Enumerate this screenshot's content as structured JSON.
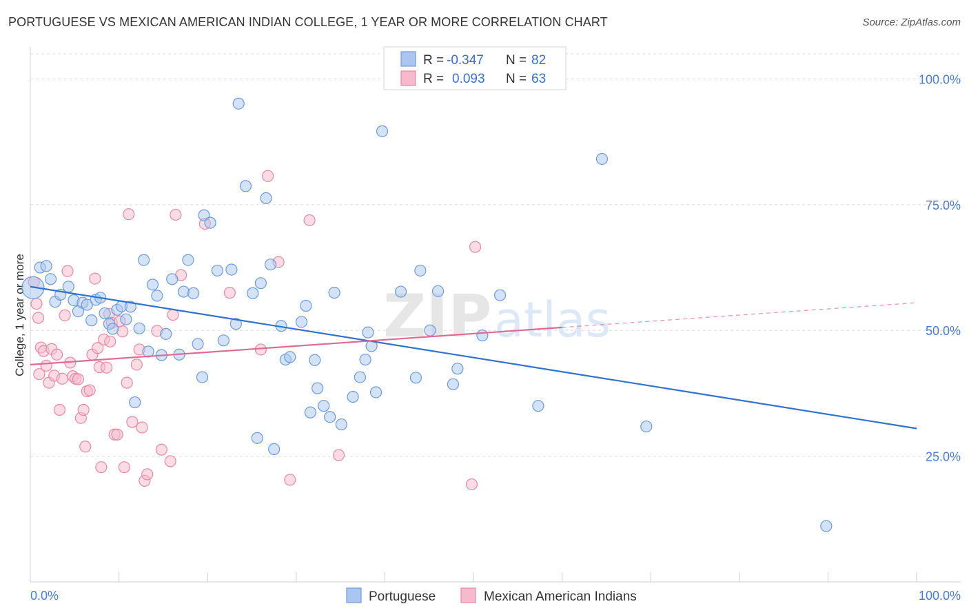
{
  "title": "PORTUGUESE VS MEXICAN AMERICAN INDIAN COLLEGE, 1 YEAR OR MORE CORRELATION CHART",
  "source": "Source: ZipAtlas.com",
  "colors": {
    "blue_fill": "#aac6f0",
    "blue_stroke": "#6d9ad9",
    "blue_line": "#2f72d0",
    "pink_fill": "#f7b9cc",
    "pink_stroke": "#e48aa6",
    "pink_line": "#e06a94",
    "grid": "#dcdcdc",
    "axis_text": "#4a7cc9"
  },
  "watermark": {
    "zip": "ZIP",
    "atlas": "atlas"
  },
  "stats": {
    "blue": {
      "r_label": "R =",
      "r": "-0.347",
      "n_label": "N =",
      "n": "82"
    },
    "pink": {
      "r_label": "R =",
      "r": "0.093",
      "n_label": "N =",
      "n": "63"
    }
  },
  "legend": {
    "blue": "Portuguese",
    "pink": "Mexican American Indians"
  },
  "chart_data": {
    "type": "scatter",
    "title": "PORTUGUESE VS MEXICAN AMERICAN INDIAN COLLEGE, 1 YEAR OR MORE CORRELATION CHART",
    "xlabel": "",
    "ylabel": "College, 1 year or more",
    "xlim": [
      0,
      100
    ],
    "ylim": [
      0,
      105
    ],
    "x_tick_labels": [
      {
        "value": 0,
        "label": "0.0%"
      },
      {
        "value": 100,
        "label": "100.0%"
      }
    ],
    "y_tick_labels": [
      {
        "value": 25,
        "label": "25.0%"
      },
      {
        "value": 50,
        "label": "50.0%"
      },
      {
        "value": 75,
        "label": "75.0%"
      },
      {
        "value": 100,
        "label": "100.0%"
      }
    ],
    "series": [
      {
        "name": "Portuguese",
        "color": "blue",
        "r": -0.347,
        "n": 82,
        "trend": {
          "x0": 0,
          "y0": 58.7,
          "x1": 100,
          "y1": 30.5,
          "dash_to": null
        },
        "points": [
          [
            0.3,
            58.5
          ],
          [
            1.1,
            62.5
          ],
          [
            1.8,
            62.8
          ],
          [
            2.3,
            60.2
          ],
          [
            2.8,
            55.7
          ],
          [
            3.4,
            57.1
          ],
          [
            4.3,
            58.7
          ],
          [
            4.9,
            56.0
          ],
          [
            5.4,
            53.8
          ],
          [
            5.9,
            55.5
          ],
          [
            6.4,
            55.1
          ],
          [
            6.9,
            52.0
          ],
          [
            7.4,
            56.1
          ],
          [
            7.9,
            56.5
          ],
          [
            8.4,
            53.4
          ],
          [
            8.9,
            51.3
          ],
          [
            9.3,
            50.3
          ],
          [
            9.8,
            54.1
          ],
          [
            10.3,
            54.8
          ],
          [
            10.8,
            52.2
          ],
          [
            11.3,
            54.7
          ],
          [
            11.8,
            35.7
          ],
          [
            12.3,
            50.4
          ],
          [
            12.8,
            64.0
          ],
          [
            13.3,
            45.8
          ],
          [
            13.8,
            59.1
          ],
          [
            14.3,
            56.9
          ],
          [
            14.8,
            45.1
          ],
          [
            15.3,
            49.3
          ],
          [
            16.0,
            60.2
          ],
          [
            16.8,
            45.2
          ],
          [
            17.3,
            57.7
          ],
          [
            17.8,
            64.0
          ],
          [
            18.4,
            57.4
          ],
          [
            18.9,
            47.3
          ],
          [
            19.4,
            40.7
          ],
          [
            19.6,
            72.9
          ],
          [
            20.3,
            71.4
          ],
          [
            21.1,
            61.9
          ],
          [
            21.8,
            48.0
          ],
          [
            22.7,
            62.1
          ],
          [
            23.2,
            51.3
          ],
          [
            23.5,
            95.1
          ],
          [
            24.3,
            78.7
          ],
          [
            25.1,
            57.4
          ],
          [
            25.6,
            28.6
          ],
          [
            26.0,
            59.4
          ],
          [
            26.6,
            76.3
          ],
          [
            27.1,
            63.1
          ],
          [
            28.3,
            50.9
          ],
          [
            28.8,
            44.2
          ],
          [
            29.3,
            44.7
          ],
          [
            30.6,
            51.7
          ],
          [
            31.1,
            54.9
          ],
          [
            31.6,
            33.7
          ],
          [
            32.1,
            44.1
          ],
          [
            32.4,
            38.5
          ],
          [
            33.1,
            35.0
          ],
          [
            33.8,
            32.8
          ],
          [
            34.3,
            57.5
          ],
          [
            35.1,
            31.3
          ],
          [
            36.4,
            36.8
          ],
          [
            37.2,
            40.7
          ],
          [
            37.8,
            44.2
          ],
          [
            38.1,
            49.6
          ],
          [
            38.5,
            46.9
          ],
          [
            39.0,
            37.7
          ],
          [
            39.7,
            89.6
          ],
          [
            41.8,
            57.7
          ],
          [
            43.5,
            40.6
          ],
          [
            44.0,
            61.9
          ],
          [
            45.1,
            50.0
          ],
          [
            46.0,
            57.8
          ],
          [
            47.7,
            39.3
          ],
          [
            48.2,
            42.4
          ],
          [
            51.0,
            49.0
          ],
          [
            53.0,
            57.0
          ],
          [
            57.3,
            35.0
          ],
          [
            64.5,
            84.1
          ],
          [
            69.5,
            30.9
          ],
          [
            27.5,
            26.4
          ],
          [
            89.8,
            11.1
          ]
        ]
      },
      {
        "name": "Mexican American Indians",
        "color": "pink",
        "r": 0.093,
        "n": 63,
        "trend": {
          "x0": 0,
          "y0": 43.2,
          "x1": 60,
          "y1": 50.6,
          "dash_to": {
            "x": 100,
            "y": 55.5
          }
        },
        "points": [
          [
            0.4,
            59.6
          ],
          [
            0.7,
            55.3
          ],
          [
            0.9,
            52.5
          ],
          [
            1.2,
            46.6
          ],
          [
            1.5,
            45.9
          ],
          [
            1.8,
            43.0
          ],
          [
            2.1,
            39.6
          ],
          [
            2.4,
            46.3
          ],
          [
            2.7,
            41.0
          ],
          [
            3.0,
            45.2
          ],
          [
            3.3,
            34.2
          ],
          [
            3.6,
            40.4
          ],
          [
            3.9,
            53.0
          ],
          [
            4.2,
            61.8
          ],
          [
            4.5,
            43.6
          ],
          [
            4.8,
            40.9
          ],
          [
            5.1,
            40.4
          ],
          [
            5.4,
            40.3
          ],
          [
            5.7,
            32.6
          ],
          [
            6.0,
            34.2
          ],
          [
            6.2,
            26.9
          ],
          [
            6.4,
            37.9
          ],
          [
            6.7,
            38.1
          ],
          [
            7.0,
            45.2
          ],
          [
            7.3,
            60.3
          ],
          [
            7.6,
            46.5
          ],
          [
            7.8,
            42.7
          ],
          [
            8.0,
            22.8
          ],
          [
            8.3,
            48.2
          ],
          [
            8.6,
            42.6
          ],
          [
            8.9,
            53.3
          ],
          [
            9.2,
            51.5
          ],
          [
            9.5,
            29.3
          ],
          [
            9.8,
            29.3
          ],
          [
            10.1,
            51.8
          ],
          [
            10.4,
            49.8
          ],
          [
            10.6,
            22.8
          ],
          [
            10.9,
            39.6
          ],
          [
            11.1,
            73.1
          ],
          [
            11.5,
            31.8
          ],
          [
            12.0,
            43.2
          ],
          [
            12.3,
            46.2
          ],
          [
            12.6,
            30.7
          ],
          [
            12.9,
            20.1
          ],
          [
            13.2,
            21.4
          ],
          [
            14.3,
            49.9
          ],
          [
            14.8,
            26.3
          ],
          [
            15.8,
            24.0
          ],
          [
            16.1,
            53.1
          ],
          [
            16.4,
            73.0
          ],
          [
            17.0,
            61.0
          ],
          [
            19.7,
            71.2
          ],
          [
            22.5,
            57.5
          ],
          [
            26.0,
            46.2
          ],
          [
            26.8,
            80.7
          ],
          [
            28.0,
            63.6
          ],
          [
            29.3,
            20.3
          ],
          [
            31.5,
            71.9
          ],
          [
            34.8,
            25.2
          ],
          [
            50.2,
            66.6
          ],
          [
            49.8,
            19.4
          ],
          [
            1.0,
            41.3
          ],
          [
            9.0,
            47.8
          ]
        ]
      }
    ]
  }
}
